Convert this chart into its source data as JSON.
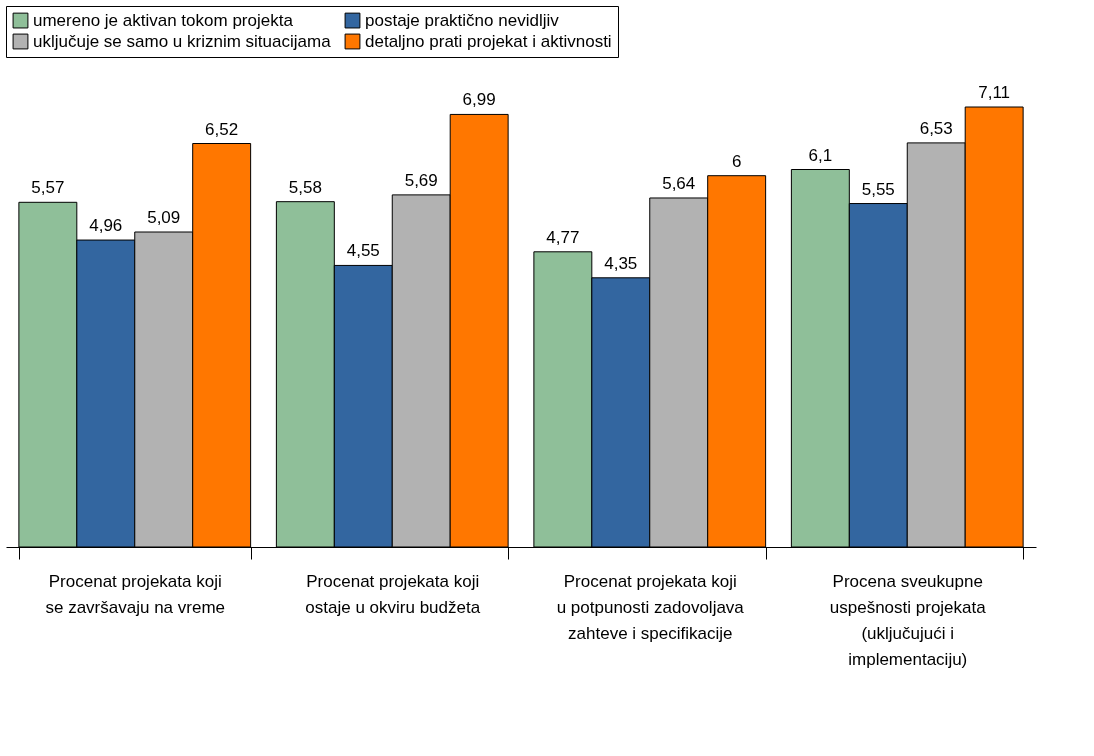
{
  "chart_data": {
    "type": "bar",
    "categories": [
      "Procenat projekata koji se završavaju na vreme",
      "Procenat projekata koji ostaje u okviru budžeta",
      "Procenat projekata koji u potpunosti zadovoljava zahteve i specifikacije",
      "Procena sveukupne uspešnosti projekata (uključujući i implementaciju)"
    ],
    "series": [
      {
        "name": "umereno je aktivan tokom projekta",
        "color": "#8fbf99",
        "values": [
          5.57,
          5.58,
          4.77,
          6.1
        ],
        "value_labels": [
          "5,57",
          "5,58",
          "4,77",
          "6,1"
        ]
      },
      {
        "name": "postaje praktično nevidljiv",
        "color": "#3366a0",
        "values": [
          4.96,
          4.55,
          4.35,
          5.55
        ],
        "value_labels": [
          "4,96",
          "4,55",
          "4,35",
          "5,55"
        ]
      },
      {
        "name": "uključuje se samo u kriznim situacijama",
        "color": "#b2b2b2",
        "values": [
          5.09,
          5.69,
          5.64,
          6.53
        ],
        "value_labels": [
          "5,09",
          "5,69",
          "5,64",
          "6,53"
        ]
      },
      {
        "name": "detaljno prati projekat i aktivnosti",
        "color": "#ff7700",
        "values": [
          6.52,
          6.99,
          6.0,
          7.11
        ],
        "value_labels": [
          "6,52",
          "6,99",
          "6",
          "7,11"
        ]
      }
    ],
    "legend": "top",
    "grid": false
  }
}
